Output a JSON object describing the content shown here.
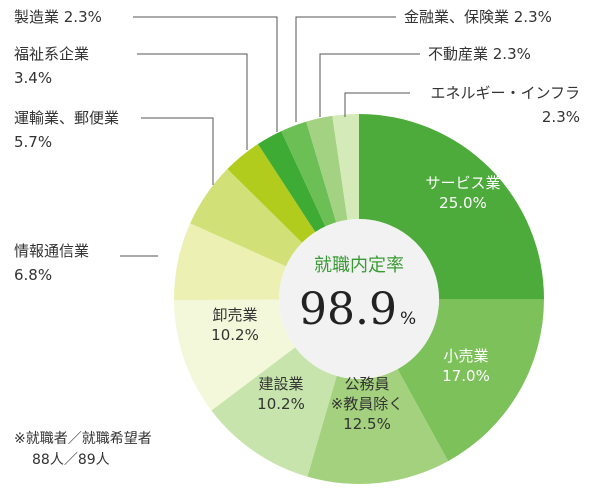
{
  "chart_data": {
    "type": "pie",
    "variant": "donut",
    "center_label": "就職内定率",
    "center_value": "98.9",
    "center_unit": "%",
    "slices": [
      {
        "name": "サービス業",
        "value": 25.0,
        "value_label": "25.0%",
        "color": "#4cab3a",
        "label_color": "#ffffff"
      },
      {
        "name": "小売業",
        "value": 17.0,
        "value_label": "17.0%",
        "color": "#7dc15a",
        "label_color": "#ffffff"
      },
      {
        "name": "公務員※教員除く",
        "lines": [
          "公務員",
          "※教員除く"
        ],
        "value": 12.5,
        "value_label": "12.5%",
        "color": "#a3d17e",
        "label_color": "#333333"
      },
      {
        "name": "建設業",
        "value": 10.2,
        "value_label": "10.2%",
        "color": "#c6e4ab",
        "label_color": "#333333"
      },
      {
        "name": "卸売業",
        "value": 10.2,
        "value_label": "10.2%",
        "color": "#f4f8da",
        "label_color": "#333333"
      },
      {
        "name": "情報通信業",
        "value": 6.8,
        "value_label": "6.8%",
        "color": "#edf0b3",
        "label_color": "#333333"
      },
      {
        "name": "運輸業、郵便業",
        "value": 5.7,
        "value_label": "5.7%",
        "color": "#d2e177",
        "label_color": "#333333"
      },
      {
        "name": "福祉系企業",
        "value": 3.4,
        "value_label": "3.4%",
        "color": "#b2cc1e",
        "label_color": "#333333"
      },
      {
        "name": "製造業",
        "value": 2.3,
        "value_label": "2.3%",
        "color": "#3eab35",
        "label_color": "#333333"
      },
      {
        "name": "金融業、保険業",
        "value": 2.3,
        "value_label": "2.3%",
        "color": "#6bbf54",
        "label_color": "#333333"
      },
      {
        "name": "不動産業",
        "value": 2.3,
        "value_label": "2.3%",
        "color": "#a3d282",
        "label_color": "#333333"
      },
      {
        "name": "エネルギー・インフラ",
        "value": 2.3,
        "value_label": "2.3%",
        "color": "#d4eab9",
        "label_color": "#333333"
      }
    ]
  },
  "colors": {
    "center_label": "#3a9b35",
    "leader_line": "#555555",
    "center_fill": "#f2f2f2"
  },
  "note": {
    "line1": "※就職者／就職希望者",
    "line2": "88人／89人"
  }
}
